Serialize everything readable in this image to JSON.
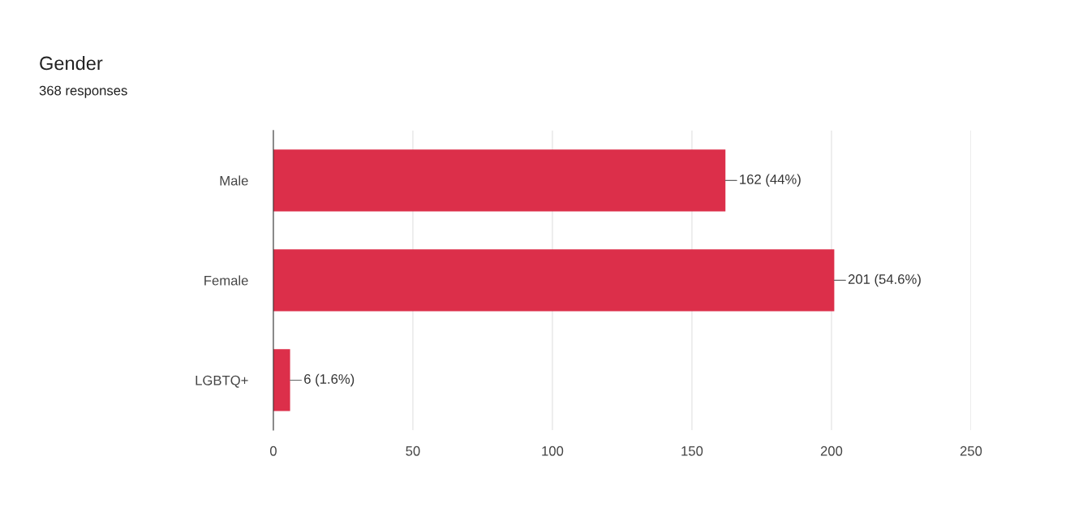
{
  "chart_data": {
    "type": "bar",
    "orientation": "horizontal",
    "title": "Gender",
    "subtitle": "368 responses",
    "categories": [
      "Male",
      "Female",
      "LGBTQ+"
    ],
    "values": [
      162,
      201,
      6
    ],
    "value_labels": [
      "162 (44%)",
      "201 (54.6%)",
      "6 (1.6%)"
    ],
    "color": "#dc2f4a",
    "xlim": [
      0,
      250
    ],
    "xticks": [
      0,
      50,
      100,
      150,
      200,
      250
    ],
    "grid": "x",
    "legend": false
  }
}
